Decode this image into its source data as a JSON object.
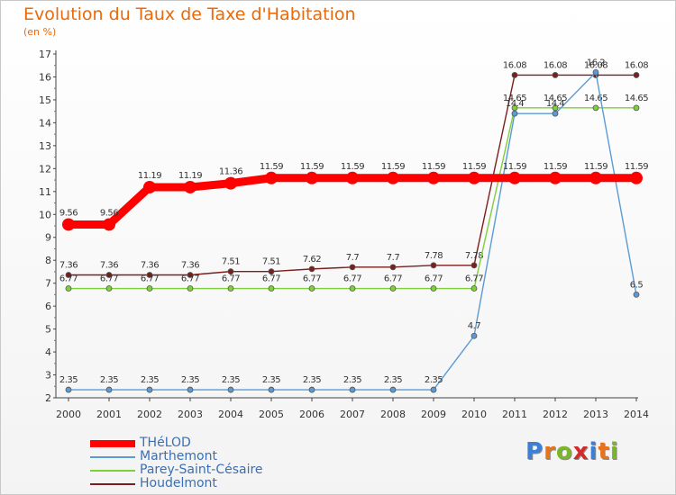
{
  "header": {
    "title": "Evolution du Taux de Taxe d'Habitation",
    "unit": "(en %)"
  },
  "brand": {
    "text": "Proxiti",
    "letters": [
      "P",
      "r",
      "o",
      "x",
      "i",
      "t",
      "i"
    ],
    "colors": [
      "#3b7fd6",
      "#e8731a",
      "#7db52a",
      "#d42a2a",
      "#3b7fd6",
      "#e8731a",
      "#7db52a"
    ]
  },
  "chart_data": {
    "type": "line",
    "title": "Evolution du Taux de Taxe d'Habitation",
    "ylabel": "(en %)",
    "xlabel": "",
    "x": [
      "2000",
      "2001",
      "2002",
      "2003",
      "2004",
      "2005",
      "2006",
      "2007",
      "2008",
      "2009",
      "2010",
      "2011",
      "2012",
      "2013",
      "2014"
    ],
    "ylim": [
      2,
      17
    ],
    "yticks": [
      "2",
      "3",
      "4",
      "5",
      "6",
      "7",
      "8",
      "9",
      "10",
      "11",
      "12",
      "13",
      "14",
      "15",
      "16",
      "17"
    ],
    "grid": false,
    "legend_position": "bottom-left",
    "series": [
      {
        "name": "Houdelmont",
        "color": "#7a1e1e",
        "values": [
          7.36,
          7.36,
          7.36,
          7.36,
          7.51,
          7.51,
          7.62,
          7.7,
          7.7,
          7.78,
          7.78,
          16.08,
          16.08,
          16.08,
          16.08
        ],
        "labels": [
          "7.36",
          "7.36",
          "7.36",
          "7.36",
          "7.51",
          "7.51",
          "7.62",
          "7.7",
          "7.7",
          "7.78",
          "7.78",
          "16.08",
          "16.08",
          "16.08",
          "16.08"
        ]
      },
      {
        "name": "Parey-Saint-Césaire",
        "color": "#7ed03a",
        "values": [
          6.77,
          6.77,
          6.77,
          6.77,
          6.77,
          6.77,
          6.77,
          6.77,
          6.77,
          6.77,
          6.77,
          14.65,
          14.65,
          14.65,
          14.65
        ],
        "labels": [
          "6.77",
          "6.77",
          "6.77",
          "6.77",
          "6.77",
          "6.77",
          "6.77",
          "6.77",
          "6.77",
          "6.77",
          "6.77",
          "14.65",
          "14.65",
          "14.65",
          "14.65"
        ]
      },
      {
        "name": "Marthemont",
        "color": "#5b9bd5",
        "values": [
          2.35,
          2.35,
          2.35,
          2.35,
          2.35,
          2.35,
          2.35,
          2.35,
          2.35,
          2.35,
          4.7,
          14.4,
          14.4,
          16.2,
          6.5
        ],
        "labels": [
          "2.35",
          "2.35",
          "2.35",
          "2.35",
          "2.35",
          "2.35",
          "2.35",
          "2.35",
          "2.35",
          "2.35",
          "4.7",
          "14.4",
          "14.4",
          "16.2",
          "6.5"
        ]
      },
      {
        "name": "THéLOD",
        "color": "#ff0000",
        "values": [
          9.56,
          9.56,
          11.19,
          11.19,
          11.36,
          11.59,
          11.59,
          11.59,
          11.59,
          11.59,
          11.59,
          11.59,
          11.59,
          11.59,
          11.59
        ],
        "labels": [
          "9.56",
          "9.56",
          "11.19",
          "11.19",
          "11.36",
          "11.59",
          "11.59",
          "11.59",
          "11.59",
          "11.59",
          "11.59",
          "11.59",
          "11.59",
          "11.59",
          "11.59"
        ]
      }
    ],
    "legend": [
      {
        "name": "THéLOD",
        "color": "#ff0000"
      },
      {
        "name": "Marthemont",
        "color": "#5b9bd5"
      },
      {
        "name": "Parey-Saint-Césaire",
        "color": "#7ed03a"
      },
      {
        "name": "Houdelmont",
        "color": "#7a1e1e"
      }
    ]
  }
}
